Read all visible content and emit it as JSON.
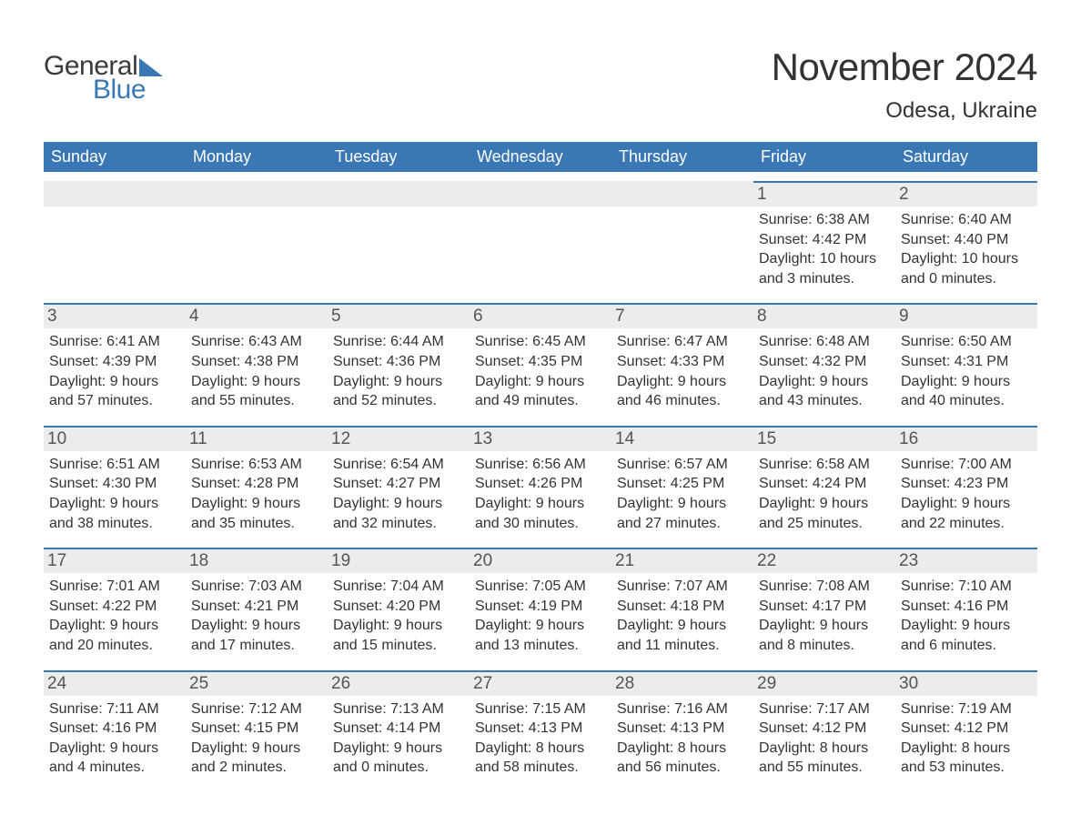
{
  "logo": {
    "word1": "General",
    "word2": "Blue"
  },
  "title": "November 2024",
  "location": "Odesa, Ukraine",
  "colors": {
    "header_bg": "#3a78b5",
    "header_text": "#ffffff",
    "daynum_bg": "#ececec",
    "daynum_border": "#3a78b5",
    "body_text": "#333333",
    "page_bg": "#ffffff"
  },
  "day_names": [
    "Sunday",
    "Monday",
    "Tuesday",
    "Wednesday",
    "Thursday",
    "Friday",
    "Saturday"
  ],
  "labels": {
    "sunrise": "Sunrise:",
    "sunset": "Sunset:",
    "daylight": "Daylight:"
  },
  "weeks": [
    [
      null,
      null,
      null,
      null,
      null,
      {
        "n": "1",
        "sunrise": "6:38 AM",
        "sunset": "4:42 PM",
        "day_h": "10",
        "day_m": "3"
      },
      {
        "n": "2",
        "sunrise": "6:40 AM",
        "sunset": "4:40 PM",
        "day_h": "10",
        "day_m": "0"
      }
    ],
    [
      {
        "n": "3",
        "sunrise": "6:41 AM",
        "sunset": "4:39 PM",
        "day_h": "9",
        "day_m": "57"
      },
      {
        "n": "4",
        "sunrise": "6:43 AM",
        "sunset": "4:38 PM",
        "day_h": "9",
        "day_m": "55"
      },
      {
        "n": "5",
        "sunrise": "6:44 AM",
        "sunset": "4:36 PM",
        "day_h": "9",
        "day_m": "52"
      },
      {
        "n": "6",
        "sunrise": "6:45 AM",
        "sunset": "4:35 PM",
        "day_h": "9",
        "day_m": "49"
      },
      {
        "n": "7",
        "sunrise": "6:47 AM",
        "sunset": "4:33 PM",
        "day_h": "9",
        "day_m": "46"
      },
      {
        "n": "8",
        "sunrise": "6:48 AM",
        "sunset": "4:32 PM",
        "day_h": "9",
        "day_m": "43"
      },
      {
        "n": "9",
        "sunrise": "6:50 AM",
        "sunset": "4:31 PM",
        "day_h": "9",
        "day_m": "40"
      }
    ],
    [
      {
        "n": "10",
        "sunrise": "6:51 AM",
        "sunset": "4:30 PM",
        "day_h": "9",
        "day_m": "38"
      },
      {
        "n": "11",
        "sunrise": "6:53 AM",
        "sunset": "4:28 PM",
        "day_h": "9",
        "day_m": "35"
      },
      {
        "n": "12",
        "sunrise": "6:54 AM",
        "sunset": "4:27 PM",
        "day_h": "9",
        "day_m": "32"
      },
      {
        "n": "13",
        "sunrise": "6:56 AM",
        "sunset": "4:26 PM",
        "day_h": "9",
        "day_m": "30"
      },
      {
        "n": "14",
        "sunrise": "6:57 AM",
        "sunset": "4:25 PM",
        "day_h": "9",
        "day_m": "27"
      },
      {
        "n": "15",
        "sunrise": "6:58 AM",
        "sunset": "4:24 PM",
        "day_h": "9",
        "day_m": "25"
      },
      {
        "n": "16",
        "sunrise": "7:00 AM",
        "sunset": "4:23 PM",
        "day_h": "9",
        "day_m": "22"
      }
    ],
    [
      {
        "n": "17",
        "sunrise": "7:01 AM",
        "sunset": "4:22 PM",
        "day_h": "9",
        "day_m": "20"
      },
      {
        "n": "18",
        "sunrise": "7:03 AM",
        "sunset": "4:21 PM",
        "day_h": "9",
        "day_m": "17"
      },
      {
        "n": "19",
        "sunrise": "7:04 AM",
        "sunset": "4:20 PM",
        "day_h": "9",
        "day_m": "15"
      },
      {
        "n": "20",
        "sunrise": "7:05 AM",
        "sunset": "4:19 PM",
        "day_h": "9",
        "day_m": "13"
      },
      {
        "n": "21",
        "sunrise": "7:07 AM",
        "sunset": "4:18 PM",
        "day_h": "9",
        "day_m": "11"
      },
      {
        "n": "22",
        "sunrise": "7:08 AM",
        "sunset": "4:17 PM",
        "day_h": "9",
        "day_m": "8"
      },
      {
        "n": "23",
        "sunrise": "7:10 AM",
        "sunset": "4:16 PM",
        "day_h": "9",
        "day_m": "6"
      }
    ],
    [
      {
        "n": "24",
        "sunrise": "7:11 AM",
        "sunset": "4:16 PM",
        "day_h": "9",
        "day_m": "4"
      },
      {
        "n": "25",
        "sunrise": "7:12 AM",
        "sunset": "4:15 PM",
        "day_h": "9",
        "day_m": "2"
      },
      {
        "n": "26",
        "sunrise": "7:13 AM",
        "sunset": "4:14 PM",
        "day_h": "9",
        "day_m": "0"
      },
      {
        "n": "27",
        "sunrise": "7:15 AM",
        "sunset": "4:13 PM",
        "day_h": "8",
        "day_m": "58"
      },
      {
        "n": "28",
        "sunrise": "7:16 AM",
        "sunset": "4:13 PM",
        "day_h": "8",
        "day_m": "56"
      },
      {
        "n": "29",
        "sunrise": "7:17 AM",
        "sunset": "4:12 PM",
        "day_h": "8",
        "day_m": "55"
      },
      {
        "n": "30",
        "sunrise": "7:19 AM",
        "sunset": "4:12 PM",
        "day_h": "8",
        "day_m": "53"
      }
    ]
  ]
}
